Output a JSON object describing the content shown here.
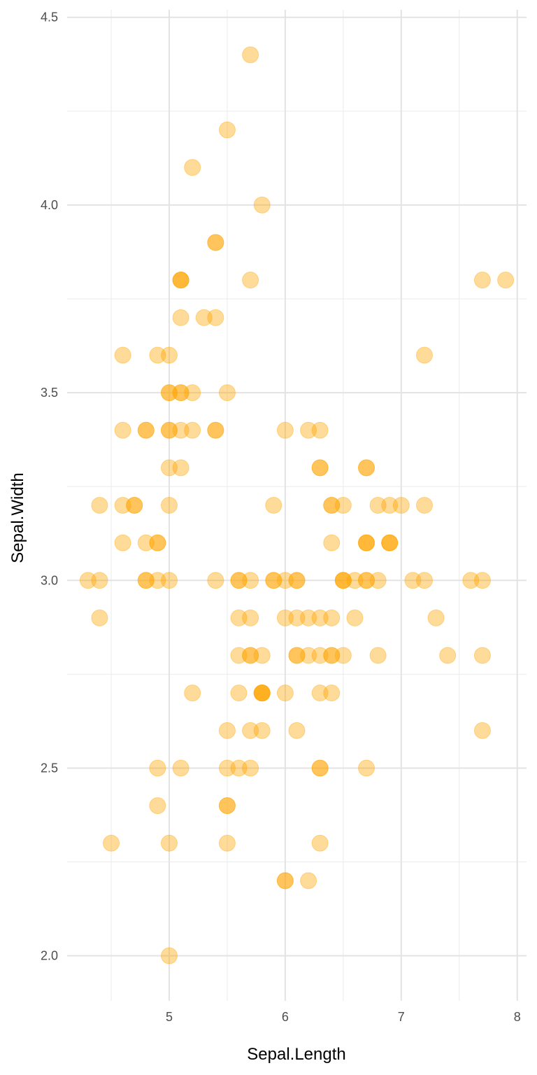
{
  "chart_data": {
    "type": "scatter",
    "xlabel": "Sepal.Length",
    "ylabel": "Sepal.Width",
    "xlim": [
      4.12,
      8.08
    ],
    "ylim": [
      1.88,
      4.52
    ],
    "x_ticks": [
      "5",
      "6",
      "7",
      "8"
    ],
    "y_ticks": [
      "2.0",
      "2.5",
      "3.0",
      "3.5",
      "4.0",
      "4.5"
    ],
    "grid": true,
    "point_color": "#ffa500",
    "point_opacity": 0.4,
    "points": [
      {
        "x": 5.1,
        "y": 3.5
      },
      {
        "x": 4.9,
        "y": 3.0
      },
      {
        "x": 4.7,
        "y": 3.2
      },
      {
        "x": 4.6,
        "y": 3.1
      },
      {
        "x": 5.0,
        "y": 3.6
      },
      {
        "x": 5.4,
        "y": 3.9
      },
      {
        "x": 4.6,
        "y": 3.4
      },
      {
        "x": 5.0,
        "y": 3.4
      },
      {
        "x": 4.4,
        "y": 2.9
      },
      {
        "x": 4.9,
        "y": 3.1
      },
      {
        "x": 5.4,
        "y": 3.7
      },
      {
        "x": 4.8,
        "y": 3.4
      },
      {
        "x": 4.8,
        "y": 3.0
      },
      {
        "x": 4.3,
        "y": 3.0
      },
      {
        "x": 5.8,
        "y": 4.0
      },
      {
        "x": 5.7,
        "y": 4.4
      },
      {
        "x": 5.4,
        "y": 3.9
      },
      {
        "x": 5.1,
        "y": 3.5
      },
      {
        "x": 5.7,
        "y": 3.8
      },
      {
        "x": 5.1,
        "y": 3.8
      },
      {
        "x": 5.4,
        "y": 3.4
      },
      {
        "x": 5.1,
        "y": 3.7
      },
      {
        "x": 4.6,
        "y": 3.6
      },
      {
        "x": 5.1,
        "y": 3.3
      },
      {
        "x": 4.8,
        "y": 3.4
      },
      {
        "x": 5.0,
        "y": 3.0
      },
      {
        "x": 5.0,
        "y": 3.4
      },
      {
        "x": 5.2,
        "y": 3.5
      },
      {
        "x": 5.2,
        "y": 3.4
      },
      {
        "x": 4.7,
        "y": 3.2
      },
      {
        "x": 4.8,
        "y": 3.1
      },
      {
        "x": 5.4,
        "y": 3.4
      },
      {
        "x": 5.2,
        "y": 4.1
      },
      {
        "x": 5.5,
        "y": 4.2
      },
      {
        "x": 4.9,
        "y": 3.1
      },
      {
        "x": 5.0,
        "y": 3.2
      },
      {
        "x": 5.5,
        "y": 3.5
      },
      {
        "x": 4.9,
        "y": 3.6
      },
      {
        "x": 4.4,
        "y": 3.0
      },
      {
        "x": 5.1,
        "y": 3.4
      },
      {
        "x": 5.0,
        "y": 3.5
      },
      {
        "x": 4.5,
        "y": 2.3
      },
      {
        "x": 4.4,
        "y": 3.2
      },
      {
        "x": 5.0,
        "y": 3.5
      },
      {
        "x": 5.1,
        "y": 3.8
      },
      {
        "x": 4.8,
        "y": 3.0
      },
      {
        "x": 5.1,
        "y": 3.8
      },
      {
        "x": 4.6,
        "y": 3.2
      },
      {
        "x": 5.3,
        "y": 3.7
      },
      {
        "x": 5.0,
        "y": 3.3
      },
      {
        "x": 7.0,
        "y": 3.2
      },
      {
        "x": 6.4,
        "y": 3.2
      },
      {
        "x": 6.9,
        "y": 3.1
      },
      {
        "x": 5.5,
        "y": 2.3
      },
      {
        "x": 6.5,
        "y": 2.8
      },
      {
        "x": 5.7,
        "y": 2.8
      },
      {
        "x": 6.3,
        "y": 3.3
      },
      {
        "x": 4.9,
        "y": 2.4
      },
      {
        "x": 6.6,
        "y": 2.9
      },
      {
        "x": 5.2,
        "y": 2.7
      },
      {
        "x": 5.0,
        "y": 2.0
      },
      {
        "x": 5.9,
        "y": 3.0
      },
      {
        "x": 6.0,
        "y": 2.2
      },
      {
        "x": 6.1,
        "y": 2.9
      },
      {
        "x": 5.6,
        "y": 2.9
      },
      {
        "x": 6.7,
        "y": 3.1
      },
      {
        "x": 5.6,
        "y": 3.0
      },
      {
        "x": 5.8,
        "y": 2.7
      },
      {
        "x": 6.2,
        "y": 2.2
      },
      {
        "x": 5.6,
        "y": 2.5
      },
      {
        "x": 5.9,
        "y": 3.2
      },
      {
        "x": 6.1,
        "y": 2.8
      },
      {
        "x": 6.3,
        "y": 2.5
      },
      {
        "x": 6.1,
        "y": 2.8
      },
      {
        "x": 6.4,
        "y": 2.9
      },
      {
        "x": 6.6,
        "y": 3.0
      },
      {
        "x": 6.8,
        "y": 2.8
      },
      {
        "x": 6.7,
        "y": 3.0
      },
      {
        "x": 6.0,
        "y": 2.9
      },
      {
        "x": 5.7,
        "y": 2.6
      },
      {
        "x": 5.5,
        "y": 2.4
      },
      {
        "x": 5.5,
        "y": 2.4
      },
      {
        "x": 5.8,
        "y": 2.7
      },
      {
        "x": 6.0,
        "y": 2.7
      },
      {
        "x": 5.4,
        "y": 3.0
      },
      {
        "x": 6.0,
        "y": 3.4
      },
      {
        "x": 6.7,
        "y": 3.1
      },
      {
        "x": 6.3,
        "y": 2.3
      },
      {
        "x": 5.6,
        "y": 3.0
      },
      {
        "x": 5.5,
        "y": 2.5
      },
      {
        "x": 5.5,
        "y": 2.6
      },
      {
        "x": 6.1,
        "y": 3.0
      },
      {
        "x": 5.8,
        "y": 2.6
      },
      {
        "x": 5.0,
        "y": 2.3
      },
      {
        "x": 5.6,
        "y": 2.7
      },
      {
        "x": 5.7,
        "y": 3.0
      },
      {
        "x": 5.7,
        "y": 2.9
      },
      {
        "x": 6.2,
        "y": 2.9
      },
      {
        "x": 5.1,
        "y": 2.5
      },
      {
        "x": 5.7,
        "y": 2.8
      },
      {
        "x": 6.3,
        "y": 3.3
      },
      {
        "x": 5.8,
        "y": 2.7
      },
      {
        "x": 7.1,
        "y": 3.0
      },
      {
        "x": 6.3,
        "y": 2.9
      },
      {
        "x": 6.5,
        "y": 3.0
      },
      {
        "x": 7.6,
        "y": 3.0
      },
      {
        "x": 4.9,
        "y": 2.5
      },
      {
        "x": 7.3,
        "y": 2.9
      },
      {
        "x": 6.7,
        "y": 2.5
      },
      {
        "x": 7.2,
        "y": 3.6
      },
      {
        "x": 6.5,
        "y": 3.2
      },
      {
        "x": 6.4,
        "y": 2.7
      },
      {
        "x": 6.8,
        "y": 3.0
      },
      {
        "x": 5.7,
        "y": 2.5
      },
      {
        "x": 5.8,
        "y": 2.8
      },
      {
        "x": 6.4,
        "y": 3.2
      },
      {
        "x": 6.5,
        "y": 3.0
      },
      {
        "x": 7.7,
        "y": 3.8
      },
      {
        "x": 7.7,
        "y": 2.6
      },
      {
        "x": 6.0,
        "y": 2.2
      },
      {
        "x": 6.9,
        "y": 3.2
      },
      {
        "x": 5.6,
        "y": 2.8
      },
      {
        "x": 7.7,
        "y": 2.8
      },
      {
        "x": 6.3,
        "y": 2.7
      },
      {
        "x": 6.7,
        "y": 3.3
      },
      {
        "x": 7.2,
        "y": 3.2
      },
      {
        "x": 6.2,
        "y": 2.8
      },
      {
        "x": 6.1,
        "y": 3.0
      },
      {
        "x": 6.4,
        "y": 2.8
      },
      {
        "x": 7.2,
        "y": 3.0
      },
      {
        "x": 7.4,
        "y": 2.8
      },
      {
        "x": 7.9,
        "y": 3.8
      },
      {
        "x": 6.4,
        "y": 2.8
      },
      {
        "x": 6.3,
        "y": 2.8
      },
      {
        "x": 6.1,
        "y": 2.6
      },
      {
        "x": 7.7,
        "y": 3.0
      },
      {
        "x": 6.3,
        "y": 3.4
      },
      {
        "x": 6.4,
        "y": 3.1
      },
      {
        "x": 6.0,
        "y": 3.0
      },
      {
        "x": 6.9,
        "y": 3.1
      },
      {
        "x": 6.7,
        "y": 3.1
      },
      {
        "x": 6.9,
        "y": 3.1
      },
      {
        "x": 5.8,
        "y": 2.7
      },
      {
        "x": 6.8,
        "y": 3.2
      },
      {
        "x": 6.7,
        "y": 3.3
      },
      {
        "x": 6.7,
        "y": 3.0
      },
      {
        "x": 6.3,
        "y": 2.5
      },
      {
        "x": 6.5,
        "y": 3.0
      },
      {
        "x": 6.2,
        "y": 3.4
      },
      {
        "x": 5.9,
        "y": 3.0
      }
    ]
  }
}
